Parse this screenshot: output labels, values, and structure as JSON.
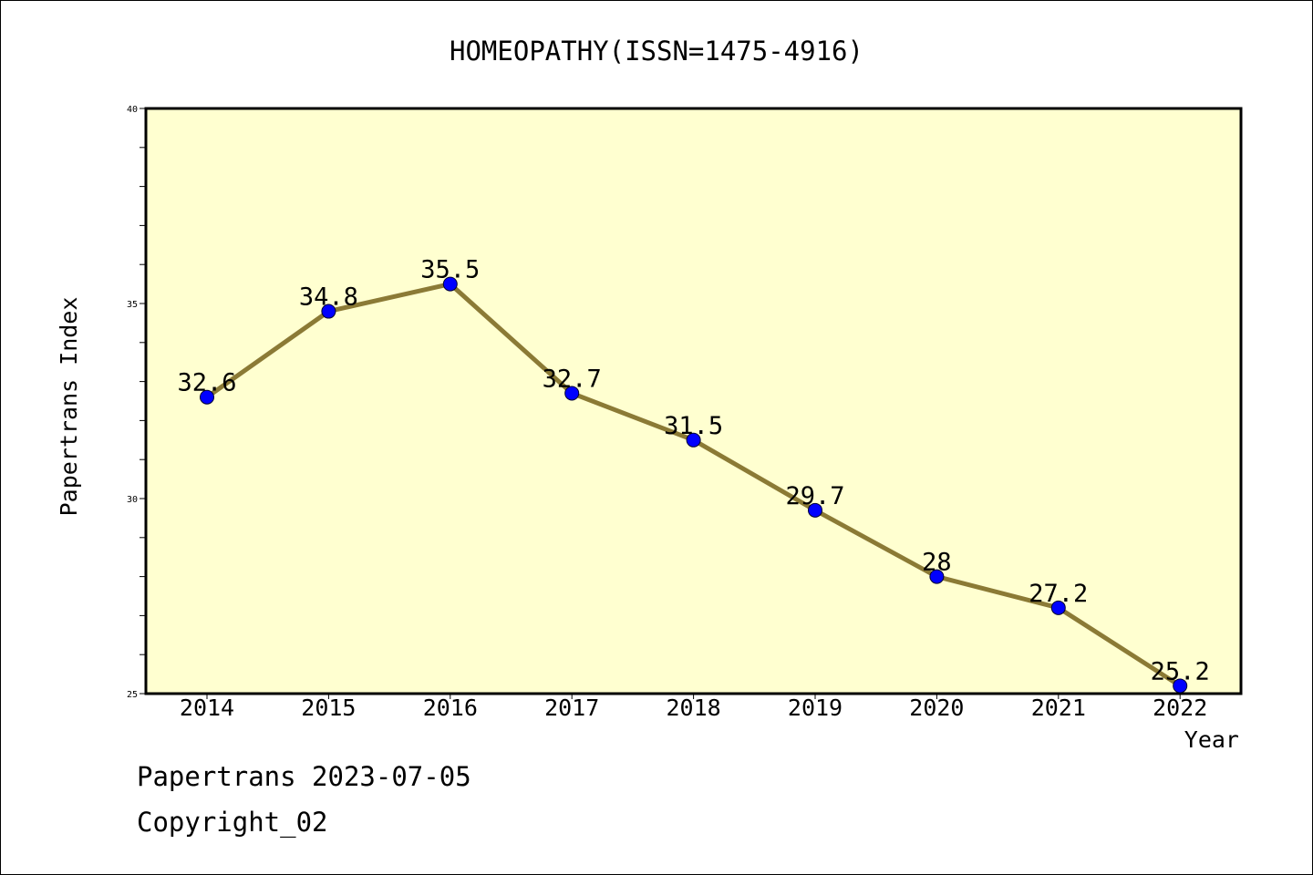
{
  "chart_data": {
    "type": "line",
    "title": "HOMEOPATHY(ISSN=1475-4916)",
    "xlabel": "Year",
    "ylabel": "Papertrans Index",
    "x": [
      "2014",
      "2015",
      "2016",
      "2017",
      "2018",
      "2019",
      "2020",
      "2021",
      "2022"
    ],
    "values": [
      32.6,
      34.8,
      35.5,
      32.7,
      31.5,
      29.7,
      28,
      27.2,
      25.2
    ],
    "data_labels": [
      "32.6",
      "34.8",
      "35.5",
      "32.7",
      "31.5",
      "29.7",
      "28",
      "27.2",
      "25.2"
    ],
    "ylim": [
      25,
      40
    ],
    "yticks": [
      25,
      30,
      35,
      40
    ],
    "ytick_labels": [
      "25",
      "30",
      "35",
      "40"
    ],
    "grid": false,
    "colors": {
      "line": "#8b7a35",
      "marker": "#0000ff",
      "plot_background": "#ffffd0"
    }
  },
  "footer": {
    "line1": "Papertrans 2023-07-05",
    "line2": "Copyright_02"
  }
}
